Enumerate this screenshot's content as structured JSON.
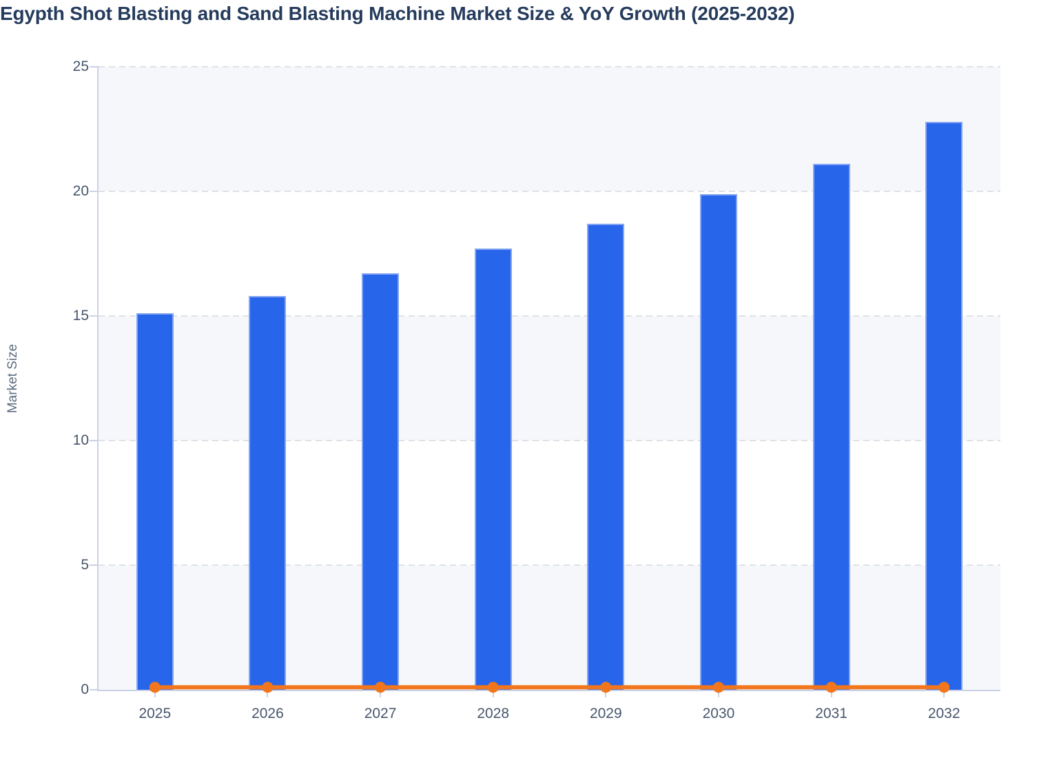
{
  "title": "Egypth Shot Blasting and Sand Blasting Machine Market Size & YoY Growth (2025-2032)",
  "chart_data": {
    "type": "bar",
    "title": "Egypth Shot Blasting and Sand Blasting Machine Market Size & YoY Growth (2025-2032)",
    "categories": [
      "2025",
      "2026",
      "2027",
      "2028",
      "2029",
      "2030",
      "2031",
      "2032"
    ],
    "series": [
      {
        "name": "Market Size",
        "type": "bar",
        "color": "#2765EB",
        "values": [
          15.1,
          15.8,
          16.7,
          17.7,
          18.7,
          19.9,
          21.1,
          22.8
        ]
      },
      {
        "name": "YoY Growth",
        "type": "line",
        "color": "#F2761C",
        "values": [
          0.1,
          0.1,
          0.1,
          0.1,
          0.1,
          0.1,
          0.1,
          0.1
        ]
      }
    ],
    "xlabel": "",
    "ylabel": "Market Size",
    "ylim": [
      0,
      25
    ],
    "yticks": [
      0,
      5,
      10,
      15,
      20,
      25
    ],
    "grid": "horizontal-dashed",
    "legend_position": "none",
    "plot_bands": "alternating shaded bands every 5 units, shaded 0-5, 10-15, 20-25"
  },
  "colors": {
    "title": "#253B5C",
    "axis_title": "#5C6B80",
    "tick_label": "#47566C",
    "bar_fill": "#2765EB",
    "bar_border": "#85A5F2",
    "line": "#F2761C",
    "gridline": "#DEE1E6",
    "band": "#F6F7FA",
    "axis_line": "#C9D1E7",
    "background": "#FFFFFF"
  }
}
